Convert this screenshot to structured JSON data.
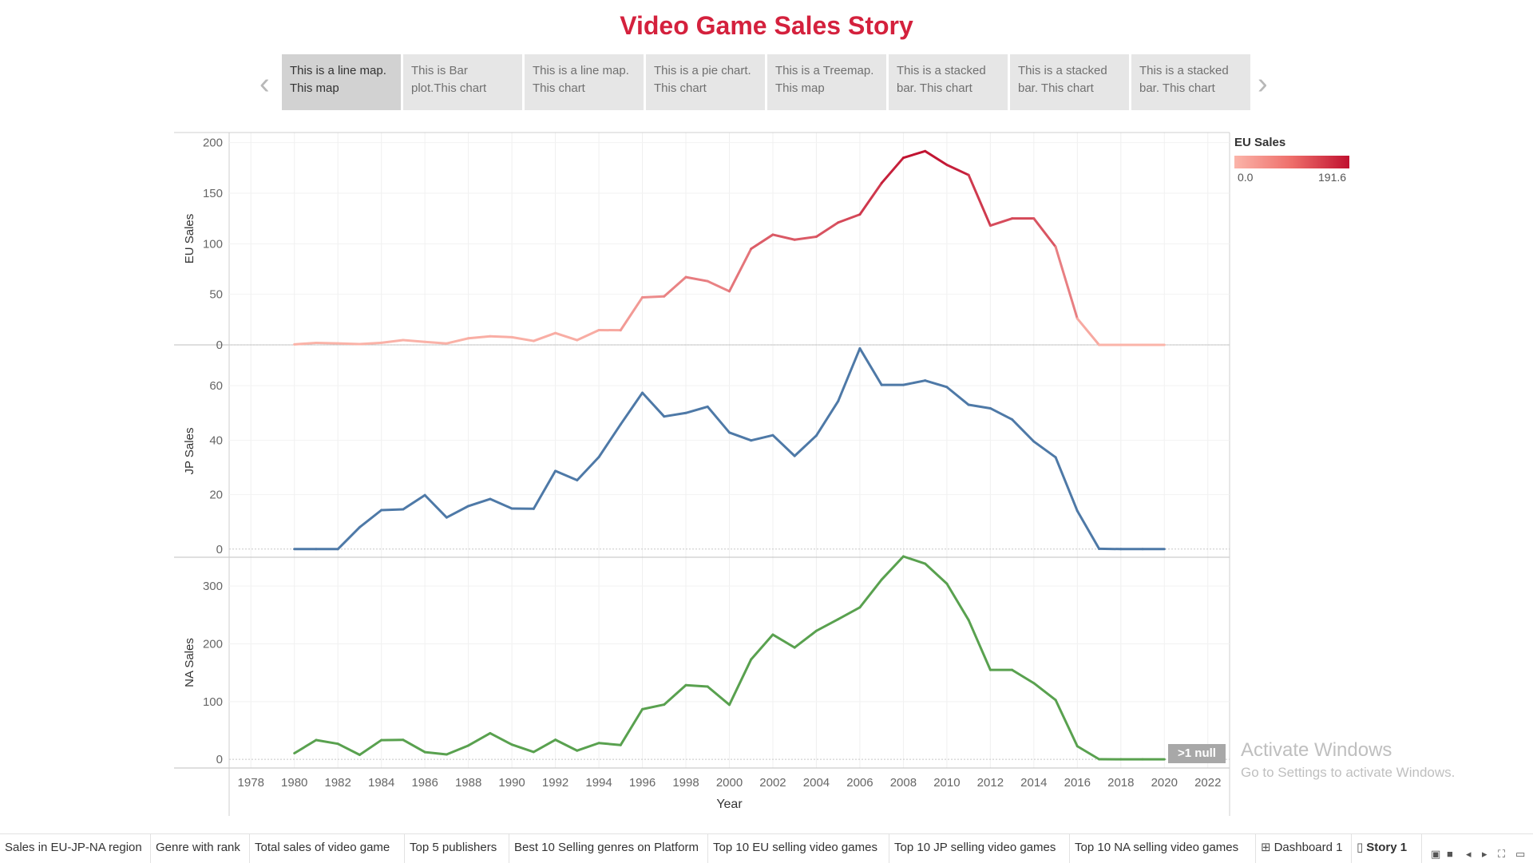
{
  "story": {
    "title": "Video Game Sales Story"
  },
  "navigator": {
    "prev_icon": "chevron-left-icon",
    "next_icon": "chevron-right-icon",
    "points": [
      {
        "line1": "This is a line map.",
        "line2": "This  map",
        "active": true
      },
      {
        "line1": "This is Bar",
        "line2": "plot.This chart",
        "active": false
      },
      {
        "line1": "This is a line map.",
        "line2": "This chart",
        "active": false
      },
      {
        "line1": "This is a pie chart.",
        "line2": "This chart",
        "active": false
      },
      {
        "line1": "This is a Treemap.",
        "line2": "This map",
        "active": false
      },
      {
        "line1": "This is a stacked",
        "line2": "bar. This chart",
        "active": false
      },
      {
        "line1": "This is a stacked",
        "line2": "bar. This chart",
        "active": false
      },
      {
        "line1": "This is a stacked",
        "line2": "bar. This chart",
        "active": false
      }
    ]
  },
  "legend": {
    "title": "EU Sales",
    "min_label": "0.0",
    "max_label": "191.6",
    "colors": [
      "#fbb4a9",
      "#c0102f"
    ],
    "min": 0,
    "max": 191.6
  },
  "null_indicator": ">1 null",
  "watermark": {
    "line1": "Activate Windows",
    "line2": "Go to Settings to activate Windows."
  },
  "tabs": [
    {
      "label": "Sales in EU-JP-NA region",
      "icon": "",
      "active": false
    },
    {
      "label": "Genre with rank",
      "icon": "",
      "active": false
    },
    {
      "label": "Total sales of video game",
      "icon": "",
      "active": false
    },
    {
      "label": "Top 5 publishers",
      "icon": "",
      "active": false
    },
    {
      "label": "Best  10 Selling genres on Platform",
      "icon": "",
      "active": false
    },
    {
      "label": "Top 10 EU selling video games",
      "icon": "",
      "active": false
    },
    {
      "label": "Top 10 JP selling video games",
      "icon": "",
      "active": false
    },
    {
      "label": "Top 10 NA selling video games",
      "icon": "",
      "active": false
    },
    {
      "label": "Dashboard 1",
      "icon": "dashboard-grid-icon",
      "active": false
    },
    {
      "label": "Story 1",
      "icon": "story-book-icon",
      "active": true
    }
  ],
  "chart_data": {
    "type": "line",
    "x_axis": {
      "label": "Year",
      "range": [
        1977,
        2023
      ],
      "ticks": [
        1978,
        1980,
        1982,
        1984,
        1986,
        1988,
        1990,
        1992,
        1994,
        1996,
        1998,
        2000,
        2002,
        2004,
        2006,
        2008,
        2010,
        2012,
        2014,
        2016,
        2018,
        2020,
        2022
      ]
    },
    "x": [
      1980,
      1981,
      1982,
      1983,
      1984,
      1985,
      1986,
      1987,
      1988,
      1989,
      1990,
      1991,
      1992,
      1993,
      1994,
      1995,
      1996,
      1997,
      1998,
      1999,
      2000,
      2001,
      2002,
      2003,
      2004,
      2005,
      2006,
      2007,
      2008,
      2009,
      2010,
      2011,
      2012,
      2013,
      2014,
      2015,
      2016,
      2017,
      2018,
      2019,
      2020
    ],
    "grid": true,
    "series": [
      {
        "name": "EU Sales",
        "ylabel": "EU Sales",
        "ylim": [
          0,
          210
        ],
        "ticks": [
          0,
          50,
          100,
          150,
          200
        ],
        "color": "gradient",
        "values": [
          0.5,
          2,
          1.5,
          0.8,
          2.1,
          4.7,
          3,
          1.4,
          6.5,
          8.5,
          7.6,
          3.9,
          11.7,
          4.7,
          14.6,
          14.5,
          47,
          48,
          67,
          63,
          53,
          95,
          109,
          104,
          107,
          121,
          129,
          160,
          185,
          191.6,
          178,
          168,
          118,
          125,
          125,
          97,
          26,
          0,
          0,
          0,
          0
        ]
      },
      {
        "name": "JP Sales",
        "ylabel": "JP Sales",
        "ylim": [
          -3,
          75
        ],
        "ticks": [
          0,
          20,
          40,
          60
        ],
        "color": "#4e79a7",
        "values": [
          0,
          0,
          0,
          8,
          14.3,
          14.6,
          19.8,
          11.6,
          15.8,
          18.4,
          14.9,
          14.8,
          28.7,
          25.3,
          33.8,
          45.8,
          57.4,
          48.7,
          50,
          52.3,
          42.8,
          39.9,
          41.8,
          34.2,
          41.7,
          54.3,
          73.7,
          60.3,
          60.3,
          61.9,
          59.5,
          53,
          51.7,
          47.6,
          39.5,
          33.7,
          14,
          0.1,
          0,
          0,
          0
        ]
      },
      {
        "name": "NA Sales",
        "ylabel": "NA Sales",
        "ylim": [
          -15,
          350
        ],
        "ticks": [
          0,
          100,
          200,
          300
        ],
        "color": "#59a14f",
        "values": [
          10.6,
          33.4,
          26.9,
          7.8,
          33.3,
          33.7,
          12.5,
          8.5,
          23.9,
          45.2,
          25.5,
          12.8,
          33.9,
          15.1,
          28.2,
          24.8,
          86.8,
          94.8,
          128.4,
          126,
          94.5,
          173.1,
          216,
          193.6,
          222.5,
          242.6,
          263.1,
          311.2,
          351.4,
          338.9,
          304.2,
          241.2,
          154.9,
          154.8,
          131.9,
          102.8,
          22.7,
          0.2,
          0,
          0,
          0
        ]
      }
    ]
  }
}
